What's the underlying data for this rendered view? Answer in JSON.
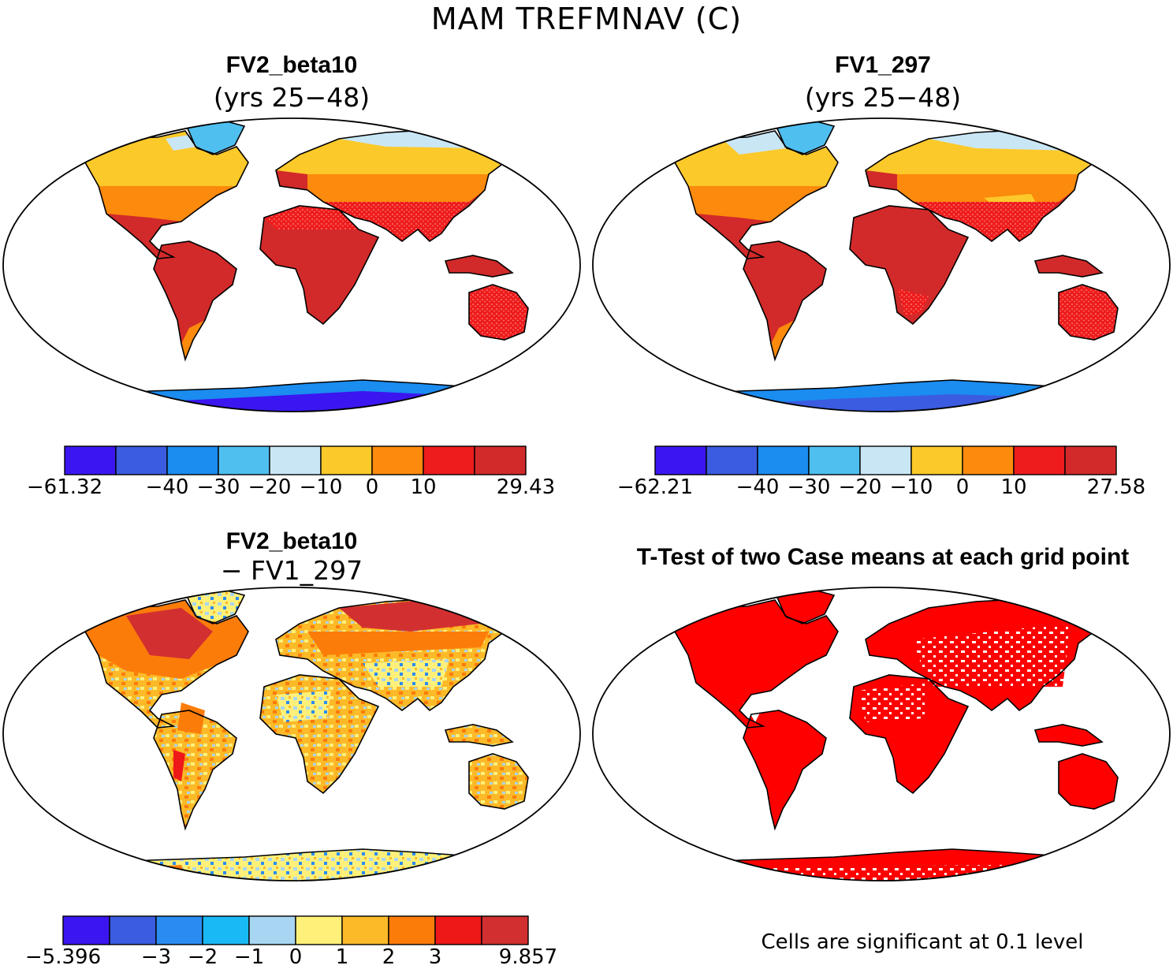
{
  "figure": {
    "title": "MAM TREFMNAV (C)",
    "panels": [
      {
        "id": "fv2",
        "title": "FV2_beta10",
        "subtitle": "(yrs 25−48)",
        "colorbar": {
          "labels": [
            "−61.32",
            "−40",
            "−30",
            "−20",
            "−10",
            "0",
            "10",
            "29.43"
          ],
          "colors": [
            "#3b16f0",
            "#3b5ce0",
            "#1b8cf0",
            "#4fbff0",
            "#c9e6f5",
            "#fcc92a",
            "#fc8a0c",
            "#ee1c1c",
            "#d22a2a"
          ]
        }
      },
      {
        "id": "fv1",
        "title": "FV1_297",
        "subtitle": "(yrs 25−48)",
        "colorbar": {
          "labels": [
            "−62.21",
            "−40",
            "−30",
            "−20",
            "−10",
            "0",
            "10",
            "27.58"
          ],
          "colors": [
            "#3b16f0",
            "#3b5ce0",
            "#1b8cf0",
            "#4fbff0",
            "#c9e6f5",
            "#fcc92a",
            "#fc8a0c",
            "#ee1c1c",
            "#d22a2a"
          ]
        }
      },
      {
        "id": "diff",
        "title": "FV2_beta10",
        "subtitle": "− FV1_297",
        "colorbar": {
          "labels": [
            "−5.396",
            "−3",
            "−2",
            "−1",
            "0",
            "1",
            "2",
            "3",
            "9.857"
          ],
          "colors": [
            "#3b16f0",
            "#3b5ce0",
            "#2a8cf0",
            "#19b9f5",
            "#a8d6f2",
            "#fff07a",
            "#fcb928",
            "#fc7c0a",
            "#ee1818",
            "#d23030"
          ]
        }
      },
      {
        "id": "ttest",
        "title": "T-Test of two Case means at each grid point",
        "subtitle": "",
        "note": "Cells are significant at 0.1 level"
      }
    ]
  }
}
